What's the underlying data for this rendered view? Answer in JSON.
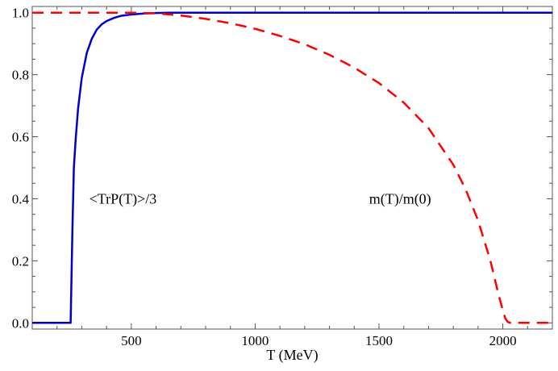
{
  "chart_data": {
    "type": "line",
    "title": "",
    "xlabel": "T (MeV)",
    "ylabel": "",
    "xlim": [
      100,
      2200
    ],
    "ylim": [
      -0.02,
      1.02
    ],
    "xticks": [
      500,
      1000,
      1500,
      2000
    ],
    "xtick_labels": [
      "500",
      "1000",
      "1500",
      "2000"
    ],
    "yticks": [
      0.0,
      0.2,
      0.4,
      0.6,
      0.8,
      1.0
    ],
    "ytick_labels": [
      "0.0",
      "0.2",
      "0.4",
      "0.6",
      "0.8",
      "1.0"
    ],
    "grid": false,
    "series": [
      {
        "annotation": "<TrP(T)>/3",
        "color": "#0000cc",
        "style": "solid",
        "x": [
          100,
          255,
          257,
          262,
          268,
          275,
          285,
          300,
          320,
          340,
          360,
          380,
          400,
          430,
          460,
          500,
          550,
          600,
          650,
          700,
          800,
          1000,
          1500,
          2000,
          2200
        ],
        "y": [
          0.0,
          0.0,
          0.08,
          0.3,
          0.5,
          0.59,
          0.69,
          0.79,
          0.87,
          0.915,
          0.945,
          0.962,
          0.973,
          0.983,
          0.99,
          0.994,
          0.997,
          0.999,
          1.0,
          1.0,
          1.0,
          1.0,
          1.0,
          1.0,
          1.0
        ]
      },
      {
        "annotation": "m(T)/m(0)",
        "color": "#ff0000",
        "style": "dashed",
        "x": [
          100,
          200,
          300,
          400,
          500,
          600,
          700,
          800,
          900,
          1000,
          1100,
          1200,
          1300,
          1400,
          1500,
          1600,
          1700,
          1800,
          1850,
          1900,
          1950,
          1980,
          2000,
          2010,
          2020,
          2030,
          2100,
          2200
        ],
        "y": [
          1.0,
          1.0,
          1.0,
          1.0,
          1.0,
          0.998,
          0.991,
          0.98,
          0.966,
          0.948,
          0.925,
          0.898,
          0.864,
          0.823,
          0.773,
          0.71,
          0.628,
          0.51,
          0.43,
          0.33,
          0.2,
          0.1,
          0.04,
          0.015,
          0.003,
          0.0,
          0.0,
          0.0
        ]
      }
    ],
    "annotations": [
      {
        "text": "<TrP(T)>/3",
        "x": 330,
        "y": 0.4
      },
      {
        "text": "m(T)/m(0)",
        "x": 1460,
        "y": 0.4
      }
    ]
  }
}
